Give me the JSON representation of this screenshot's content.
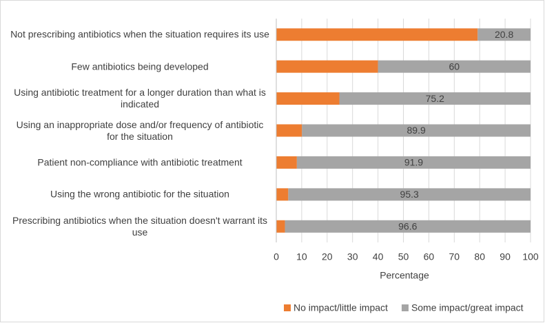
{
  "chart_data": {
    "type": "stacked-bar-horizontal",
    "categories": [
      "Not prescribing antibiotics when the situation requires its use",
      "Few antibiotics being developed",
      "Using antibiotic treatment for a longer duration than what is indicated",
      "Using an inappropriate dose and/or frequency of antibiotic for the situation",
      "Patient non-compliance with antibiotic treatment",
      "Using the wrong antibiotic for the situation",
      "Prescribing antibiotics when the situation doesn't warrant its use"
    ],
    "series": [
      {
        "name": "No impact/little impact",
        "color": "#ed7d31",
        "values": [
          79.2,
          40,
          24.8,
          10.1,
          8.1,
          4.7,
          3.4
        ]
      },
      {
        "name": "Some impact/great impact",
        "color": "#a5a5a5",
        "values": [
          20.8,
          60,
          75.2,
          89.9,
          91.9,
          95.3,
          96.6
        ]
      }
    ],
    "xlabel": "Percentage",
    "xlim": [
      0,
      100
    ],
    "xticks": [
      0,
      10,
      20,
      30,
      40,
      50,
      60,
      70,
      80,
      90,
      100
    ],
    "grid": true,
    "legend": "bottom",
    "data_labels_series": 1
  }
}
